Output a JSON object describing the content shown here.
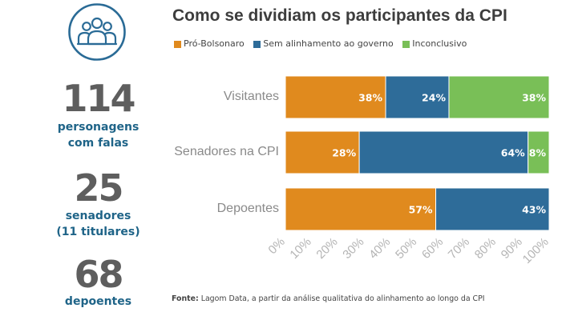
{
  "stats": [
    {
      "number": "114",
      "label_line1": "personagens",
      "label_line2": "com falas"
    },
    {
      "number": "25",
      "label_line1": "senadores",
      "label_line2": "(11 titulares)"
    },
    {
      "number": "68",
      "label_line1": "depoentes",
      "label_line2": ""
    }
  ],
  "icon": "people-group-icon",
  "colors": {
    "pro_bolsonaro": "#e08a1e",
    "sem_alinhamento": "#2e6c99",
    "inconclusivo": "#79bf57",
    "stat_number": "#5e5e5e",
    "stat_label": "#1f6488",
    "icon": "#2a6b96"
  },
  "source": {
    "label": "Fonte:",
    "text": "Lagom Data, a partir da análise qualitativa do alinhamento ao longo da CPI"
  },
  "chart_data": {
    "type": "bar",
    "orientation": "horizontal",
    "stacked": true,
    "title": "Como se dividiam os participantes da CPI",
    "categories": [
      "Visitantes",
      "Senadores na CPI",
      "Depoentes"
    ],
    "series": [
      {
        "name": "Pró-Bolsonaro",
        "values": [
          38,
          28,
          57
        ],
        "labels": [
          "38%",
          "28%",
          "57%"
        ]
      },
      {
        "name": "Sem alinhamento ao governo",
        "values": [
          24,
          64,
          43
        ],
        "labels": [
          "24%",
          "64%",
          "43%"
        ]
      },
      {
        "name": "Inconclusivo",
        "values": [
          38,
          8,
          0
        ],
        "labels": [
          "38%",
          "8%",
          ""
        ]
      }
    ],
    "xlim": [
      0,
      100
    ],
    "xticks": [
      "0%",
      "10%",
      "20%",
      "30%",
      "40%",
      "50%",
      "60%",
      "70%",
      "80%",
      "90%",
      "100%"
    ],
    "legend_position": "top-left",
    "grid": false
  }
}
